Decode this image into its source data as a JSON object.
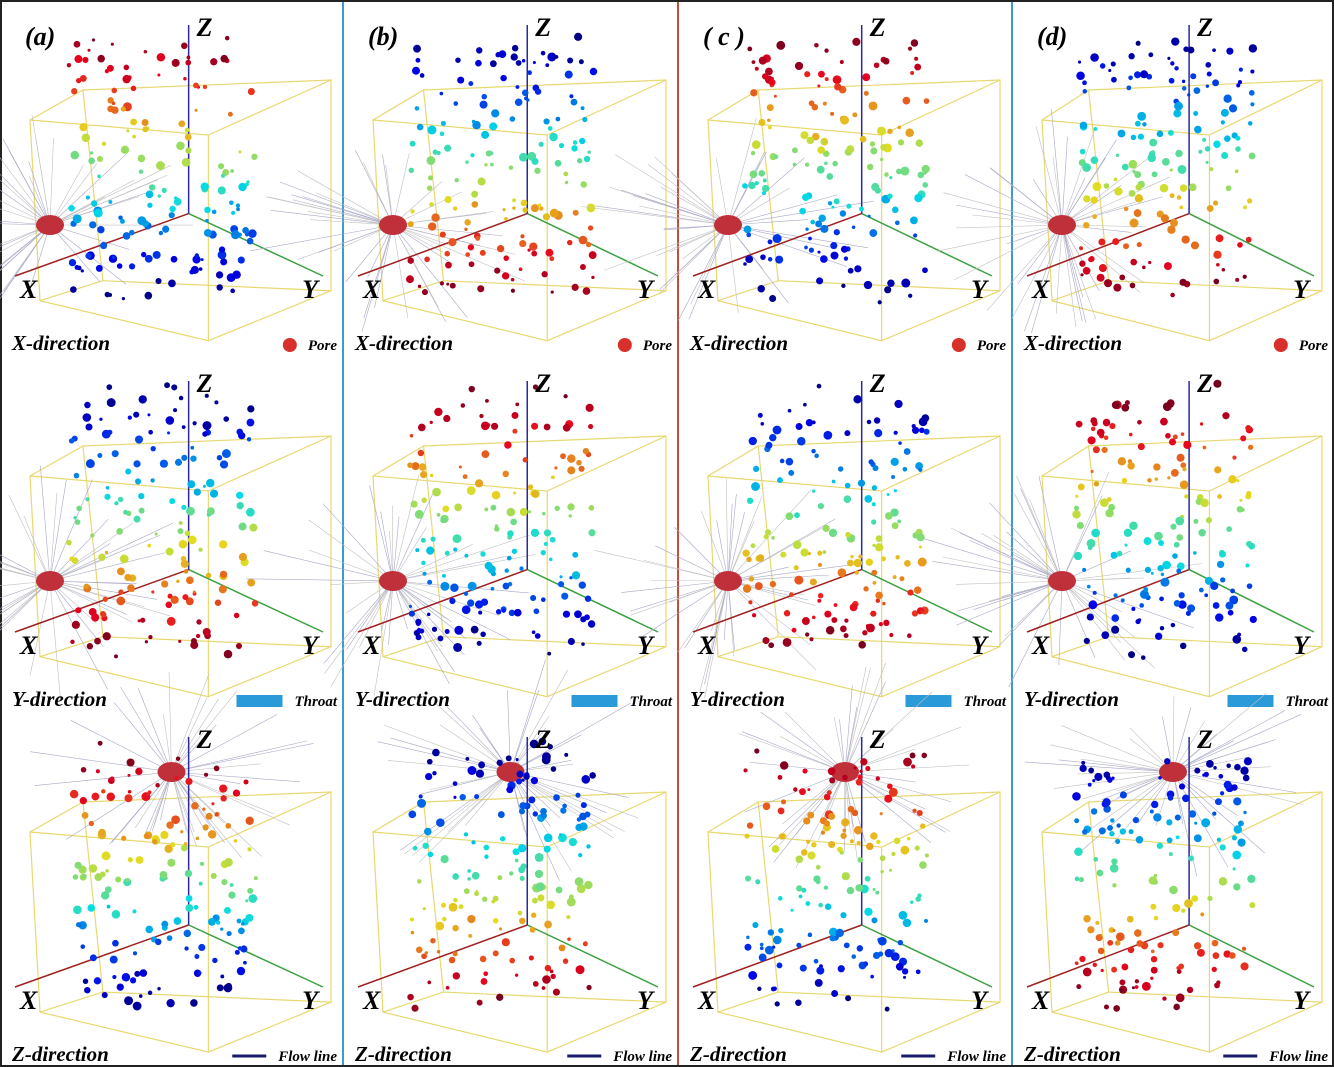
{
  "columns": [
    {
      "label": "(a)"
    },
    {
      "label": "(b)"
    },
    {
      "label": "( c )"
    },
    {
      "label": "(d)"
    }
  ],
  "rows": [
    {
      "direction": "X-direction",
      "legend": "Pore"
    },
    {
      "direction": "Y-direction",
      "legend": "Throat"
    },
    {
      "direction": "Z-direction",
      "legend": "Flow line"
    }
  ],
  "axes": {
    "x": "X",
    "y": "Y",
    "z": "Z"
  }
}
